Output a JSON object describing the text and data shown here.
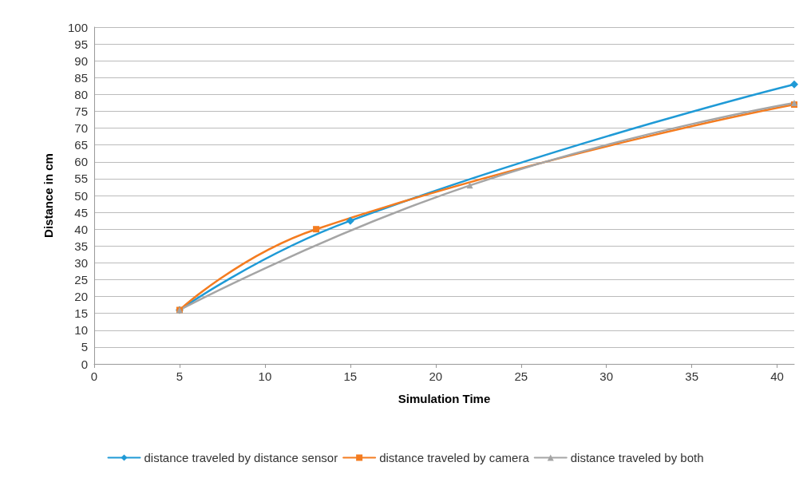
{
  "chart_data": {
    "type": "line",
    "xlabel": "Simulation Time",
    "ylabel": "Distance in cm",
    "xlim": [
      0,
      41
    ],
    "xticks": [
      0,
      5,
      10,
      15,
      20,
      25,
      30,
      35,
      40
    ],
    "ylim": [
      0,
      100
    ],
    "yticks": [
      0,
      5,
      10,
      15,
      20,
      25,
      30,
      35,
      40,
      45,
      50,
      55,
      60,
      65,
      70,
      75,
      80,
      85,
      90,
      95,
      100
    ],
    "grid": "y",
    "legend": "bottom",
    "series": [
      {
        "name": "distance traveled by distance sensor",
        "color": "#1f9ad6",
        "marker": "diamond",
        "x": [
          5,
          15,
          41
        ],
        "values": [
          16,
          42.5,
          83
        ]
      },
      {
        "name": "distance traveled by camera",
        "color": "#f47c20",
        "marker": "square",
        "x": [
          5,
          13,
          41
        ],
        "values": [
          16,
          40,
          77
        ]
      },
      {
        "name": "distance traveled by both",
        "color": "#a5a5a5",
        "marker": "triangle",
        "x": [
          5,
          22,
          41
        ],
        "values": [
          16,
          53,
          77.5
        ]
      }
    ]
  }
}
